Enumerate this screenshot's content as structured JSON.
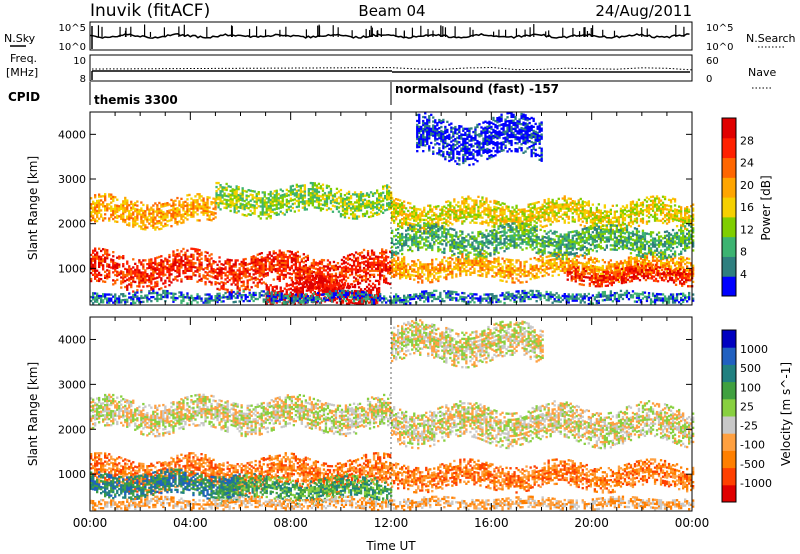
{
  "header": {
    "station": "Inuvik (fitACF)",
    "beam": "Beam 04",
    "date": "24/Aug/2011"
  },
  "noise_panel": {
    "left_label": "N.Sky",
    "left_ticks": [
      "10^5",
      "10^0"
    ],
    "right_label": "N.Search",
    "right_ticks": [
      "10^5",
      "10^0"
    ]
  },
  "freq_panel": {
    "left_label_1": "Freq.",
    "left_label_2": "[MHz]",
    "left_ticks": [
      "10",
      "8"
    ],
    "right_label": "Nave",
    "right_ticks": [
      "60",
      "0"
    ]
  },
  "cpid_panel": {
    "label": "CPID",
    "segments": [
      {
        "start": 0,
        "end": 12,
        "text": "themis 3300"
      },
      {
        "start": 12,
        "end": 24,
        "text": "normalsound (fast) -157"
      }
    ]
  },
  "colors": {
    "power": [
      "#0000ff",
      "#2f7f7f",
      "#3cb371",
      "#7fce00",
      "#f5d000",
      "#ffa500",
      "#ff6600",
      "#ff2000",
      "#e00000"
    ],
    "velocity": [
      "#e00000",
      "#ff4000",
      "#ff7f00",
      "#ffa040",
      "#c8c8c8",
      "#88d040",
      "#40a040",
      "#208080",
      "#2060c0",
      "#0000c0"
    ]
  },
  "chart_data": [
    {
      "type": "heatmap",
      "name": "power",
      "ylabel": "Slant Range [km]",
      "colorbar_label": "Power [dB]",
      "colorbar_ticks": [
        "28",
        "24",
        "20",
        "16",
        "12",
        "8",
        "4"
      ],
      "xlim": [
        0,
        24
      ],
      "ylim": [
        180,
        4500
      ],
      "yticks": [
        "1000",
        "2000",
        "3000",
        "4000"
      ],
      "bands": [
        {
          "t0": 0.0,
          "t1": 12.0,
          "r_center": 950,
          "r_width": 380,
          "level": 7
        },
        {
          "t0": 12.0,
          "t1": 24.0,
          "r_center": 1000,
          "r_width": 250,
          "level": 5
        },
        {
          "t0": 19.0,
          "t1": 24.0,
          "r_center": 850,
          "r_width": 200,
          "level": 7
        },
        {
          "t0": 7.0,
          "t1": 11.5,
          "r_center": 420,
          "r_width": 300,
          "level": 8
        },
        {
          "t0": 0.0,
          "t1": 5.0,
          "r_center": 2250,
          "r_width": 300,
          "level": 5
        },
        {
          "t0": 5.0,
          "t1": 12.0,
          "r_center": 2500,
          "r_width": 300,
          "level": 3
        },
        {
          "t0": 12.0,
          "t1": 24.0,
          "r_center": 2200,
          "r_width": 300,
          "level": 4
        },
        {
          "t0": 12.0,
          "t1": 24.0,
          "r_center": 1600,
          "r_width": 300,
          "level": 2
        },
        {
          "t0": 13.0,
          "t1": 18.0,
          "r_center": 3900,
          "r_width": 450,
          "level": 0
        },
        {
          "t0": 0.0,
          "t1": 24.0,
          "r_center": 330,
          "r_width": 120,
          "level": 1
        }
      ]
    },
    {
      "type": "heatmap",
      "name": "velocity",
      "xlabel": "Time UT",
      "ylabel": "Slant Range [km]",
      "colorbar_label": "Velocity [m s^-1]",
      "colorbar_ticks": [
        "1000",
        "500",
        "100",
        "25",
        "-25",
        "-100",
        "-500",
        "-1000"
      ],
      "xlim": [
        0,
        24
      ],
      "ylim": [
        180,
        4500
      ],
      "xticks": [
        "00:00",
        "04:00",
        "08:00",
        "12:00",
        "16:00",
        "20:00",
        "00:00"
      ],
      "yticks": [
        "1000",
        "2000",
        "3000",
        "4000"
      ],
      "bands": [
        {
          "t0": 0.0,
          "t1": 12.0,
          "r_center": 1000,
          "r_width": 350,
          "level": 2
        },
        {
          "t0": 12.0,
          "t1": 24.0,
          "r_center": 950,
          "r_width": 280,
          "level": 2
        },
        {
          "t0": 0.0,
          "t1": 12.0,
          "r_center": 2300,
          "r_width": 350,
          "level": 4
        },
        {
          "t0": 12.0,
          "t1": 24.0,
          "r_center": 2100,
          "r_width": 400,
          "level": 4
        },
        {
          "t0": 5.0,
          "t1": 12.0,
          "r_center": 650,
          "r_width": 250,
          "level": 6
        },
        {
          "t0": 12.0,
          "t1": 18.0,
          "r_center": 3900,
          "r_width": 400,
          "level": 4
        },
        {
          "t0": 0.0,
          "t1": 6.0,
          "r_center": 750,
          "r_width": 250,
          "level": 7
        },
        {
          "t0": 0.0,
          "t1": 24.0,
          "r_center": 330,
          "r_width": 120,
          "level": 3
        }
      ]
    }
  ]
}
